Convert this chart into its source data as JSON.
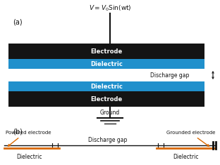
{
  "fig_width": 3.12,
  "fig_height": 2.35,
  "dpi": 100,
  "bg_color": "#ffffff",
  "black": "#111111",
  "orange": "#d96800",
  "electrode_color": "#141414",
  "dielectric_color": "#2090cc",
  "label_a": "(a)",
  "label_b": "(b)",
  "voltage_label_normal": "V = ",
  "voltage_label_italic": "V",
  "electrode_label": "Electrode",
  "dielectric_label": "Dielectric",
  "discharge_gap_label": "Discharge gap",
  "ground_label": "Ground",
  "powered_label": "Powered electrode",
  "grounded_label": "Grounded electrode"
}
